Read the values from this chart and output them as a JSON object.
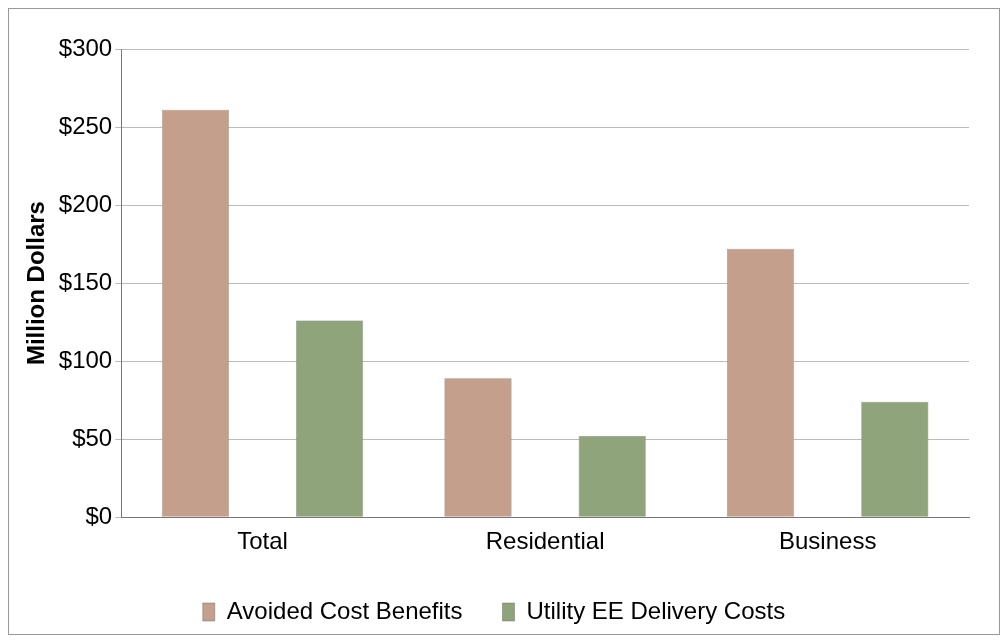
{
  "chart_data": {
    "type": "bar",
    "ylabel": "Million Dollars",
    "categories": [
      "Total",
      "Residential",
      "Business"
    ],
    "series": [
      {
        "name": "Avoided Cost Benefits",
        "color": "#c4a08c",
        "values": [
          261,
          89,
          172
        ]
      },
      {
        "name": "Utility EE Delivery Costs",
        "color": "#8fa47a",
        "values": [
          126,
          52,
          74
        ]
      }
    ],
    "ylim": [
      0,
      300
    ],
    "yticks": [
      {
        "value": 0,
        "label": "$0"
      },
      {
        "value": 50,
        "label": "$50"
      },
      {
        "value": 100,
        "label": "$100"
      },
      {
        "value": 150,
        "label": "$150"
      },
      {
        "value": 200,
        "label": "$200"
      },
      {
        "value": 250,
        "label": "$250"
      },
      {
        "value": 300,
        "label": "$300"
      }
    ],
    "grid": "y",
    "legend": "bottom"
  }
}
